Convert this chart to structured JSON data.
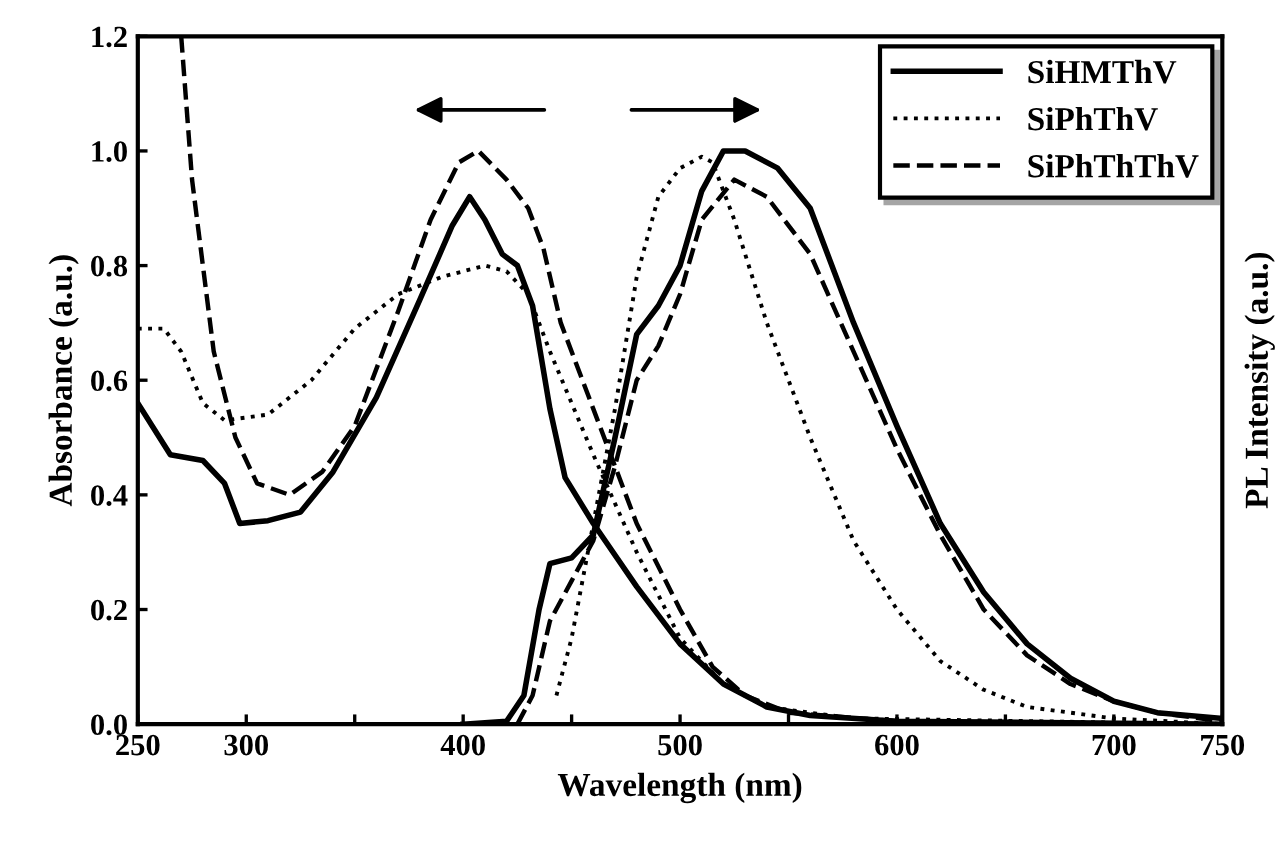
{
  "chart_data": {
    "type": "line",
    "xlabel": "Wavelength (nm)",
    "ylabel": "Absorbance (a.u.)",
    "y2label": "PL Intensity (a.u.)",
    "xlim": [
      250,
      750
    ],
    "ylim": [
      0,
      1.2
    ],
    "xticks": [
      250,
      300,
      {
        "value": 350,
        "label": null
      },
      400,
      {
        "value": 450,
        "label": null
      },
      500,
      {
        "value": 550,
        "label": null
      },
      600,
      {
        "value": 650,
        "label": null
      },
      700,
      750
    ],
    "yticks": [
      {
        "value": 0,
        "label": "0.0"
      },
      {
        "value": 0.2,
        "label": "0.2"
      },
      {
        "value": 0.4,
        "label": "0.4"
      },
      {
        "value": 0.6,
        "label": "0.6"
      },
      {
        "value": 0.8,
        "label": "0.8"
      },
      {
        "value": 1.0,
        "label": "1.0"
      },
      {
        "value": 1.2,
        "label": "1.2"
      }
    ],
    "grid": false,
    "legend": "top right",
    "marker": "none",
    "series": [
      {
        "name": "SiHMThV",
        "color": "#000000",
        "line_style": "solid",
        "x": [
          250,
          265,
          280,
          290,
          297,
          310,
          325,
          340,
          360,
          380,
          395,
          403,
          410,
          418,
          425,
          432,
          440,
          447,
          460,
          480,
          500,
          520,
          540,
          560,
          600,
          750
        ],
        "values": [
          0.56,
          0.47,
          0.46,
          0.42,
          0.35,
          0.355,
          0.37,
          0.44,
          0.57,
          0.74,
          0.87,
          0.92,
          0.88,
          0.82,
          0.8,
          0.73,
          0.55,
          0.43,
          0.35,
          0.24,
          0.14,
          0.07,
          0.03,
          0.015,
          0.005,
          0
        ]
      },
      {
        "name": "SiPhThV",
        "color": "#000000",
        "line_style": "dotted",
        "x": [
          250,
          262,
          270,
          280,
          290,
          310,
          330,
          350,
          370,
          390,
          410,
          420,
          430,
          440,
          460,
          480,
          500,
          520,
          540,
          580,
          750
        ],
        "values": [
          0.69,
          0.69,
          0.65,
          0.56,
          0.53,
          0.54,
          0.6,
          0.69,
          0.75,
          0.78,
          0.8,
          0.79,
          0.75,
          0.65,
          0.47,
          0.3,
          0.15,
          0.07,
          0.03,
          0.01,
          0
        ]
      },
      {
        "name": "SiPhThThV",
        "color": "#000000",
        "line_style": "dashed",
        "x": [
          270,
          275,
          285,
          295,
          305,
          320,
          335,
          350,
          370,
          385,
          398,
          407,
          420,
          430,
          437,
          445,
          460,
          480,
          500,
          515,
          530,
          550,
          600,
          750
        ],
        "values": [
          1.2,
          0.95,
          0.65,
          0.5,
          0.42,
          0.4,
          0.44,
          0.52,
          0.72,
          0.88,
          0.98,
          1.0,
          0.95,
          0.9,
          0.83,
          0.7,
          0.55,
          0.35,
          0.2,
          0.1,
          0.05,
          0.02,
          0.005,
          0
        ]
      },
      {
        "color": "#000000",
        "line_style": "solid",
        "x": [
          400,
          420,
          428,
          435,
          440,
          450,
          460,
          470,
          480,
          490,
          500,
          510,
          520,
          530,
          545,
          560,
          580,
          600,
          620,
          640,
          660,
          680,
          700,
          720,
          750
        ],
        "values": [
          0,
          0.005,
          0.05,
          0.2,
          0.28,
          0.29,
          0.33,
          0.5,
          0.68,
          0.73,
          0.8,
          0.93,
          1.0,
          1.0,
          0.97,
          0.9,
          0.7,
          0.52,
          0.35,
          0.23,
          0.14,
          0.08,
          0.04,
          0.02,
          0.01
        ]
      },
      {
        "color": "#000000",
        "line_style": "dotted",
        "x": [
          443,
          450,
          460,
          470,
          480,
          490,
          500,
          510,
          515,
          525,
          540,
          560,
          580,
          600,
          620,
          640,
          660,
          700,
          750
        ],
        "values": [
          0.05,
          0.15,
          0.35,
          0.55,
          0.78,
          0.92,
          0.97,
          0.99,
          0.98,
          0.88,
          0.7,
          0.5,
          0.32,
          0.2,
          0.11,
          0.06,
          0.03,
          0.01,
          0
        ]
      },
      {
        "color": "#000000",
        "line_style": "dashed",
        "x": [
          425,
          432,
          440,
          450,
          460,
          470,
          480,
          490,
          500,
          510,
          525,
          540,
          560,
          580,
          600,
          620,
          640,
          660,
          680,
          700,
          720,
          750
        ],
        "values": [
          0,
          0.05,
          0.18,
          0.25,
          0.32,
          0.45,
          0.6,
          0.66,
          0.75,
          0.88,
          0.95,
          0.92,
          0.82,
          0.65,
          0.48,
          0.33,
          0.2,
          0.12,
          0.07,
          0.04,
          0.02,
          0.005
        ]
      }
    ]
  }
}
